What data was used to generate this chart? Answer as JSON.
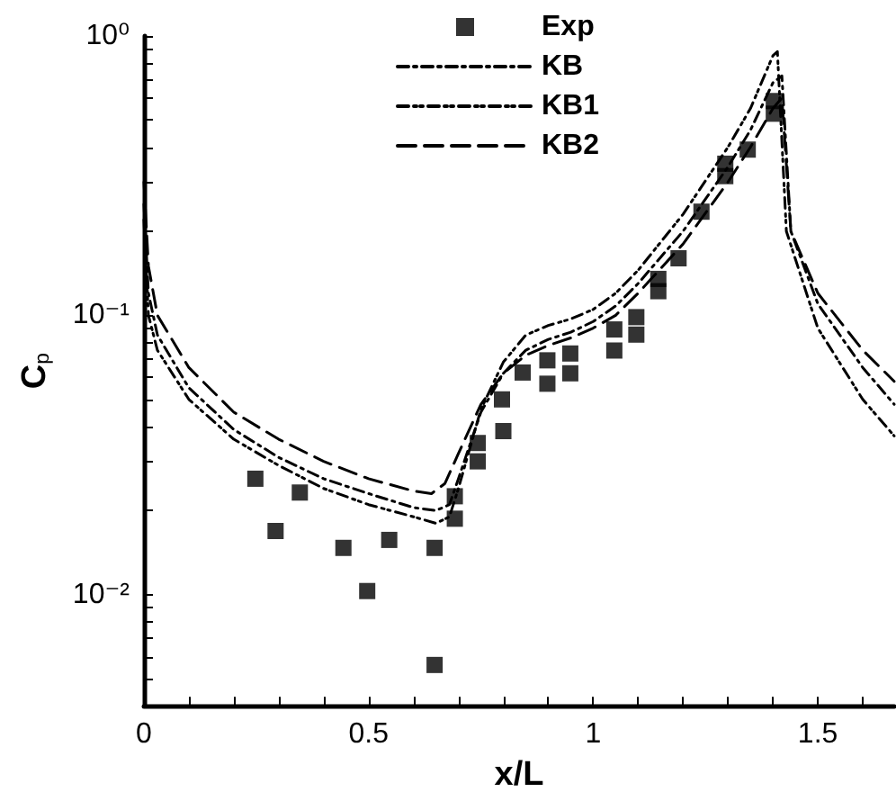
{
  "chart_data": {
    "type": "line",
    "xlabel": "x/L",
    "ylabel": "C$_{p}$",
    "xlim": [
      0,
      1.67
    ],
    "ylim": [
      0.004,
      1
    ],
    "log": "y",
    "grid": false,
    "legend": "top",
    "xticks": [
      0,
      {
        "value": 0.1,
        "label": null
      },
      {
        "value": 0.2,
        "label": null
      },
      {
        "value": 0.3,
        "label": null
      },
      {
        "value": 0.4,
        "label": null
      },
      0.5,
      {
        "value": 0.6,
        "label": null
      },
      {
        "value": 0.7,
        "label": null
      },
      {
        "value": 0.8,
        "label": null
      },
      {
        "value": 0.9,
        "label": null
      },
      1,
      {
        "value": 1.1,
        "label": null
      },
      {
        "value": 1.2,
        "label": null
      },
      {
        "value": 1.3,
        "label": null
      },
      {
        "value": 1.4,
        "label": null
      },
      1.5,
      {
        "value": 1.6,
        "label": null
      }
    ],
    "yticks": [
      {
        "value": 0.005,
        "label": null
      },
      {
        "value": 0.006,
        "label": null
      },
      {
        "value": 0.007,
        "label": null
      },
      {
        "value": 0.008,
        "label": null
      },
      {
        "value": 0.009,
        "label": null
      },
      {
        "value": 0.01,
        "label": "10⁻²"
      },
      {
        "value": 0.02,
        "label": null
      },
      {
        "value": 0.03,
        "label": null
      },
      {
        "value": 0.04,
        "label": null
      },
      {
        "value": 0.05,
        "label": null
      },
      {
        "value": 0.06,
        "label": null
      },
      {
        "value": 0.07,
        "label": null
      },
      {
        "value": 0.08,
        "label": null
      },
      {
        "value": 0.09,
        "label": null
      },
      {
        "value": 0.1,
        "label": "10⁻¹"
      },
      {
        "value": 0.2,
        "label": null
      },
      {
        "value": 0.3,
        "label": null
      },
      {
        "value": 0.4,
        "label": null
      },
      {
        "value": 0.5,
        "label": null
      },
      {
        "value": 0.6,
        "label": null
      },
      {
        "value": 0.7,
        "label": null
      },
      {
        "value": 0.8,
        "label": null
      },
      {
        "value": 0.9,
        "label": null
      },
      {
        "value": 1,
        "label": "10⁰"
      }
    ],
    "series": [
      {
        "name": "Exp",
        "type": "scatter",
        "marker": "square",
        "color": "#000000",
        "x": [
          0.248,
          0.293,
          0.347,
          0.444,
          0.497,
          0.546,
          0.647,
          0.647,
          0.692,
          0.692,
          0.743,
          0.743,
          0.797,
          0.8,
          0.843,
          0.898,
          0.898,
          0.949,
          0.949,
          1.047,
          1.047,
          1.096,
          1.096,
          1.145,
          1.145,
          1.19,
          1.241,
          1.294,
          1.294,
          1.344,
          1.402,
          1.402
        ],
        "values": [
          0.026,
          0.0169,
          0.0232,
          0.0147,
          0.0103,
          0.0157,
          0.0147,
          0.0056,
          0.0225,
          0.0187,
          0.0349,
          0.03,
          0.05,
          0.0385,
          0.0624,
          0.069,
          0.0569,
          0.073,
          0.062,
          0.089,
          0.0748,
          0.0985,
          0.0853,
          0.135,
          0.122,
          0.16,
          0.235,
          0.349,
          0.315,
          0.392,
          0.585,
          0.527
        ]
      },
      {
        "name": "KB",
        "line_style": "dashed",
        "color": "#000000",
        "x": [
          0,
          0.01,
          0.03,
          0.1,
          0.2,
          0.3,
          0.4,
          0.5,
          0.6,
          0.65,
          0.68,
          0.7,
          0.75,
          0.8,
          0.85,
          0.9,
          0.95,
          1.0,
          1.05,
          1.1,
          1.2,
          1.3,
          1.35,
          1.4,
          1.42,
          1.44,
          1.5,
          1.6,
          1.67
        ],
        "values": [
          0.25,
          0.12,
          0.085,
          0.055,
          0.039,
          0.031,
          0.026,
          0.023,
          0.0205,
          0.02,
          0.021,
          0.026,
          0.045,
          0.062,
          0.075,
          0.082,
          0.087,
          0.095,
          0.108,
          0.13,
          0.2,
          0.34,
          0.46,
          0.68,
          0.72,
          0.2,
          0.11,
          0.065,
          0.048
        ]
      },
      {
        "name": "KB1",
        "line_style": "dashed",
        "color": "#000000",
        "x": [
          0,
          0.01,
          0.03,
          0.1,
          0.2,
          0.3,
          0.4,
          0.5,
          0.6,
          0.65,
          0.68,
          0.7,
          0.75,
          0.8,
          0.85,
          0.9,
          0.95,
          1.0,
          1.05,
          1.1,
          1.2,
          1.3,
          1.35,
          1.4,
          1.41,
          1.43,
          1.5,
          1.6,
          1.67
        ],
        "values": [
          0.22,
          0.1,
          0.075,
          0.05,
          0.036,
          0.029,
          0.024,
          0.021,
          0.019,
          0.018,
          0.019,
          0.024,
          0.046,
          0.068,
          0.085,
          0.092,
          0.097,
          0.105,
          0.12,
          0.145,
          0.23,
          0.4,
          0.55,
          0.85,
          0.88,
          0.2,
          0.09,
          0.05,
          0.037
        ]
      },
      {
        "name": "KB2",
        "line_style": "dashed",
        "color": "#000000",
        "x": [
          0,
          0.01,
          0.03,
          0.1,
          0.2,
          0.3,
          0.4,
          0.5,
          0.6,
          0.64,
          0.67,
          0.7,
          0.75,
          0.8,
          0.85,
          0.9,
          0.95,
          1.0,
          1.05,
          1.1,
          1.2,
          1.3,
          1.35,
          1.4,
          1.42,
          1.44,
          1.5,
          1.6,
          1.67
        ],
        "values": [
          0.3,
          0.15,
          0.1,
          0.065,
          0.045,
          0.036,
          0.03,
          0.026,
          0.0235,
          0.023,
          0.025,
          0.032,
          0.048,
          0.062,
          0.072,
          0.078,
          0.083,
          0.09,
          0.1,
          0.12,
          0.18,
          0.3,
          0.4,
          0.55,
          0.6,
          0.2,
          0.12,
          0.075,
          0.058
        ]
      }
    ]
  }
}
